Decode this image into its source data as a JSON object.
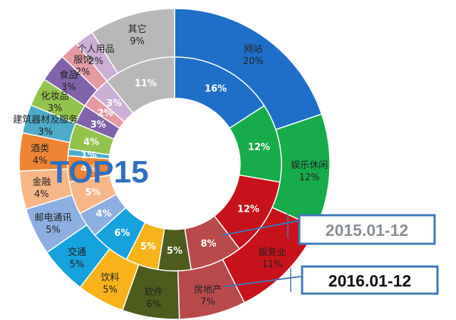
{
  "chart_data": {
    "type": "pie",
    "title": "TOP15",
    "categories": [
      "网站",
      "娱乐休闲",
      "服务业",
      "房地产",
      "软件",
      "饮料",
      "交通",
      "邮电通讯",
      "金融",
      "酒类",
      "建筑器材及服务",
      "化妆品",
      "食品",
      "服饰",
      "个人用品",
      "其它"
    ],
    "colors": [
      "#1f6fc8",
      "#18ab4b",
      "#c8121b",
      "#b84a4c",
      "#4d5b1d",
      "#f7b319",
      "#16a2dc",
      "#8daee0",
      "#f7b688",
      "#ee8534",
      "#4dabc8",
      "#94c34d",
      "#8063a8",
      "#e39aa3",
      "#ccafd4",
      "#b8b8b8"
    ],
    "series": [
      {
        "name": "2015.01-12",
        "values": [
          16,
          12,
          12,
          8,
          5,
          5,
          6,
          4,
          5,
          4,
          1,
          4,
          3,
          2,
          3,
          11
        ],
        "labels": [
          "16%",
          "12%",
          "12%",
          "8%",
          "5%",
          "5%",
          "6%",
          "4%",
          "5%",
          "4%",
          "1%",
          "4%",
          "3%",
          "2%",
          "3%",
          "11%"
        ]
      },
      {
        "name": "2016.01-12",
        "values": [
          20,
          12,
          11,
          7,
          6,
          5,
          5,
          5,
          4,
          4,
          3,
          3,
          3,
          2,
          2,
          9
        ],
        "labels": [
          "20%",
          "12%",
          "11%",
          "7%",
          "6%",
          "5%",
          "5%",
          "5%",
          "4%",
          "4%",
          "3%",
          "3%",
          "3%",
          "2%",
          "2%",
          "9%"
        ]
      }
    ]
  },
  "page": {
    "top_text": "TOP15",
    "legend_inner": "2015.01-12",
    "legend_outer": "2016.01-12"
  }
}
